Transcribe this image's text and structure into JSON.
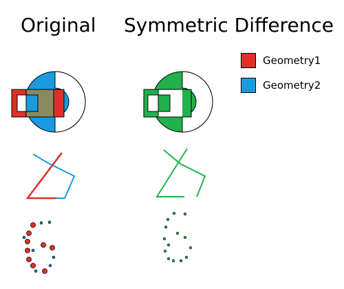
{
  "titles": {
    "left": "Original",
    "right": "Symmetric Difference"
  },
  "legend": [
    {
      "label": "Geometry1",
      "color": "#e0302a"
    },
    {
      "label": "Geometry2",
      "color": "#1a9be0"
    }
  ],
  "colors": {
    "geometry1": "#e0302a",
    "geometry2": "#1a9be0",
    "overlap": "#8a8a60",
    "symmetric_difference": "#22b14c",
    "outline": "#000000"
  },
  "shapes": [
    "polygons",
    "lines",
    "points"
  ]
}
